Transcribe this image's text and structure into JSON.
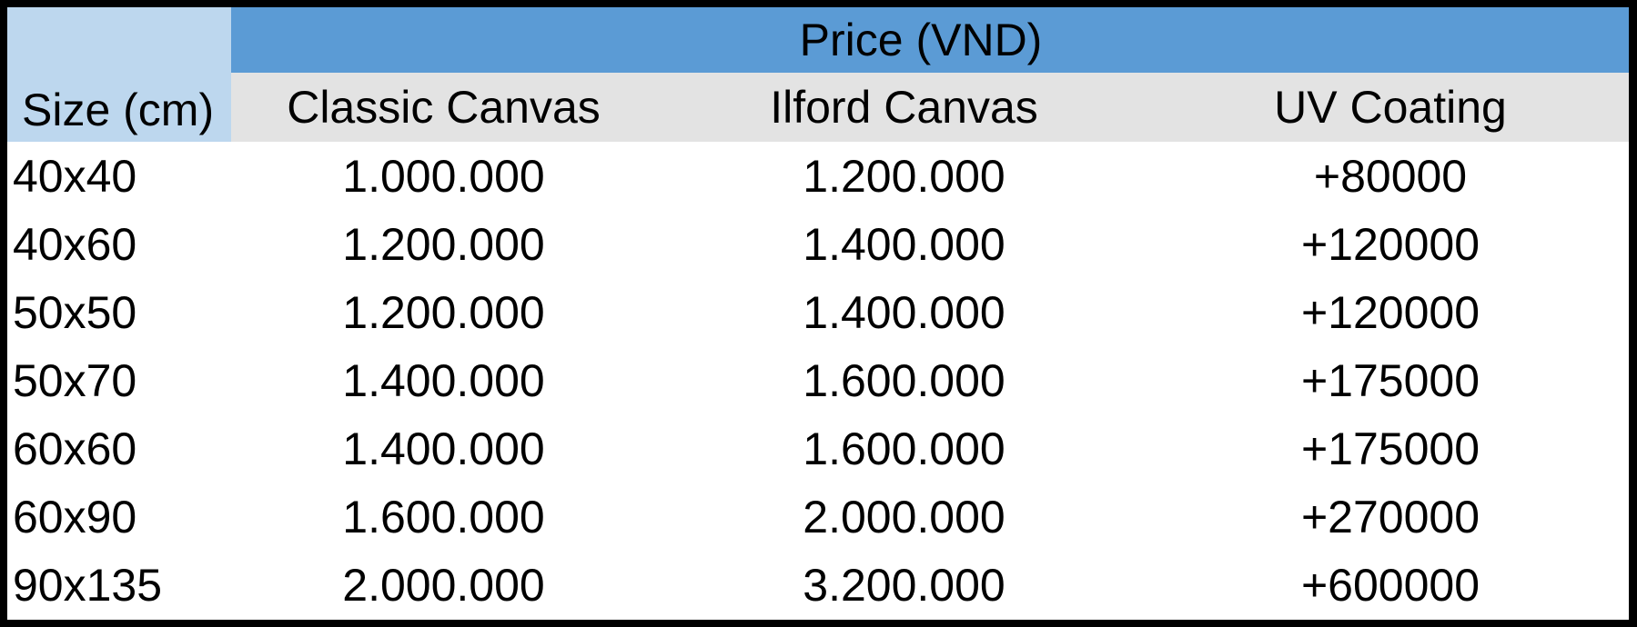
{
  "table": {
    "size_header": "Size (cm)",
    "group_header": "Price (VND)",
    "columns": [
      "Classic Canvas",
      "Ilford Canvas",
      "UV Coating"
    ],
    "rows": [
      {
        "size": "40x40",
        "classic": "1.000.000",
        "ilford": "1.200.000",
        "uv": "+80000"
      },
      {
        "size": "40x60",
        "classic": "1.200.000",
        "ilford": "1.400.000",
        "uv": "+120000"
      },
      {
        "size": "50x50",
        "classic": "1.200.000",
        "ilford": "1.400.000",
        "uv": "+120000"
      },
      {
        "size": "50x70",
        "classic": "1.400.000",
        "ilford": "1.600.000",
        "uv": "+175000"
      },
      {
        "size": "60x60",
        "classic": "1.400.000",
        "ilford": "1.600.000",
        "uv": "+175000"
      },
      {
        "size": "60x90",
        "classic": "1.600.000",
        "ilford": "2.000.000",
        "uv": "+270000"
      },
      {
        "size": "90x135",
        "classic": "2.000.000",
        "ilford": "3.200.000",
        "uv": "+600000"
      }
    ]
  },
  "colors": {
    "border": "#000000",
    "size_header_bg": "#bdd7ee",
    "price_header_bg": "#5b9bd5",
    "column_header_bg": "#e3e3e3",
    "body_bg": "#ffffff"
  }
}
